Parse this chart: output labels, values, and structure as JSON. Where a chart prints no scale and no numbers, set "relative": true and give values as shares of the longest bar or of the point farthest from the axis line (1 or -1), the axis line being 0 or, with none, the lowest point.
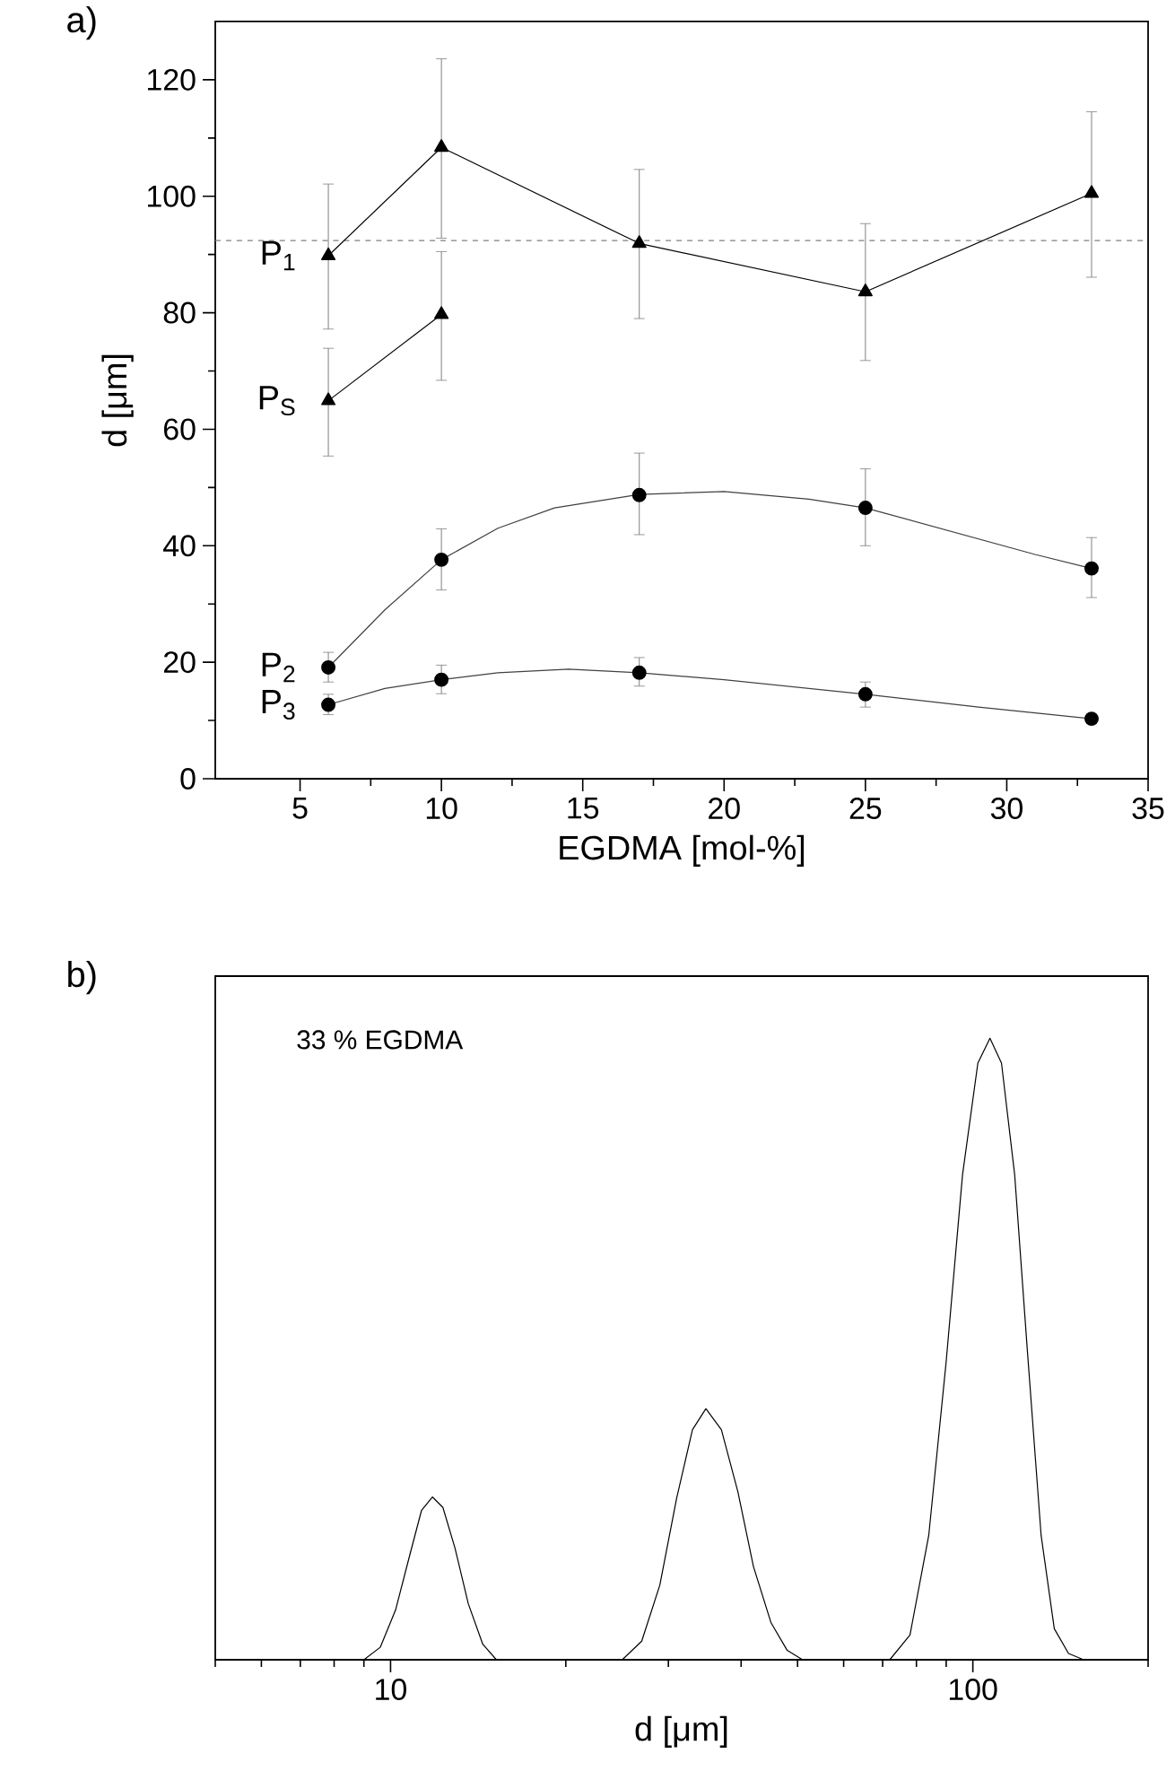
{
  "chart_data": [
    {
      "type": "line",
      "title": "a)",
      "xlabel": "EGDMA [mol-%]",
      "ylabel": "d [μm]",
      "xlim": [
        2,
        35
      ],
      "ylim": [
        0,
        130
      ],
      "xticks": [
        5,
        10,
        15,
        20,
        25,
        30,
        35
      ],
      "yticks": [
        0,
        20,
        40,
        60,
        80,
        100,
        120
      ],
      "legend": "left",
      "ref_lines": [
        {
          "axis": "y",
          "value": 92.4,
          "color": "#808080",
          "line_style": "dashed"
        }
      ],
      "series": [
        {
          "name": "P$_{1}$",
          "type": "line",
          "marker": "triangle",
          "color": "#000000",
          "x": [
            6,
            10,
            17,
            25,
            33
          ],
          "values": [
            89.8,
            108.4,
            91.9,
            83.6,
            100.5
          ],
          "errors": [
            [
              77.2,
              102.1
            ],
            [
              92.8,
              123.6
            ],
            [
              79.0,
              104.6
            ],
            [
              71.8,
              95.3
            ],
            [
              86.1,
              114.5
            ]
          ]
        },
        {
          "name": "P$_{S}$",
          "type": "line",
          "marker": "triangle",
          "color": "#000000",
          "x": [
            6,
            10
          ],
          "values": [
            64.9,
            79.7
          ],
          "errors": [
            [
              55.4,
              73.9
            ],
            [
              68.4,
              90.5
            ]
          ]
        },
        {
          "name": "P$_{2}$",
          "type": "scatter",
          "marker": "circle",
          "color": "#000000",
          "x": [
            6,
            10,
            17,
            25,
            33
          ],
          "values": [
            19.1,
            37.6,
            48.7,
            46.5,
            36.1
          ],
          "errors": [
            [
              16.6,
              21.7
            ],
            [
              32.4,
              42.9
            ],
            [
              41.9,
              55.9
            ],
            [
              40.0,
              53.2
            ],
            [
              31.1,
              41.4
            ]
          ]
        },
        {
          "name": "P$_{3}$",
          "type": "scatter",
          "marker": "circle",
          "color": "#000000",
          "x": [
            6,
            10,
            17,
            25,
            33
          ],
          "values": [
            12.7,
            17.0,
            18.2,
            14.5,
            10.3
          ],
          "errors": [
            [
              11.0,
              14.5
            ],
            [
              14.6,
              19.5
            ],
            [
              15.9,
              20.8
            ],
            [
              12.3,
              16.6
            ],
            [
              9.5,
              11.0
            ]
          ]
        },
        {
          "type": "line",
          "marker": "none",
          "color": "#404040",
          "x": [
            6,
            8,
            10,
            12,
            14,
            17,
            20,
            23,
            25,
            28,
            31,
            33
          ],
          "values": [
            19.1,
            29.0,
            37.6,
            43.0,
            46.5,
            48.8,
            49.3,
            48.0,
            46.5,
            42.5,
            38.5,
            36.1
          ]
        },
        {
          "type": "line",
          "marker": "none",
          "color": "#404040",
          "x": [
            6,
            8,
            10,
            12,
            14.5,
            17,
            20,
            25,
            29,
            33
          ],
          "values": [
            12.7,
            15.5,
            17.0,
            18.2,
            18.8,
            18.2,
            17.0,
            14.5,
            12.3,
            10.3
          ]
        }
      ]
    },
    {
      "type": "line",
      "title": "b)",
      "xlabel": "d [μm]",
      "annotations": [
        "33 % EGDMA"
      ],
      "log": "x",
      "xlim": [
        5,
        200
      ],
      "xticks": [
        10,
        100
      ],
      "relative": true,
      "color": "#000000",
      "x": [
        5,
        9.0,
        9.6,
        10.2,
        10.8,
        11.3,
        11.8,
        12.3,
        12.9,
        13.6,
        14.4,
        15.2,
        25,
        27,
        29,
        31,
        33,
        34.8,
        37,
        39.5,
        42,
        45,
        48,
        51,
        72,
        78,
        84,
        90,
        96,
        102,
        107,
        112,
        118,
        124,
        131,
        138,
        146,
        155,
        200
      ],
      "values": [
        0,
        0,
        0.02,
        0.08,
        0.17,
        0.24,
        0.262,
        0.245,
        0.18,
        0.09,
        0.025,
        0,
        0,
        0.03,
        0.12,
        0.26,
        0.37,
        0.404,
        0.37,
        0.27,
        0.15,
        0.06,
        0.015,
        0,
        0,
        0.04,
        0.2,
        0.48,
        0.78,
        0.96,
        1,
        0.96,
        0.78,
        0.5,
        0.2,
        0.05,
        0.01,
        0,
        0
      ]
    }
  ]
}
